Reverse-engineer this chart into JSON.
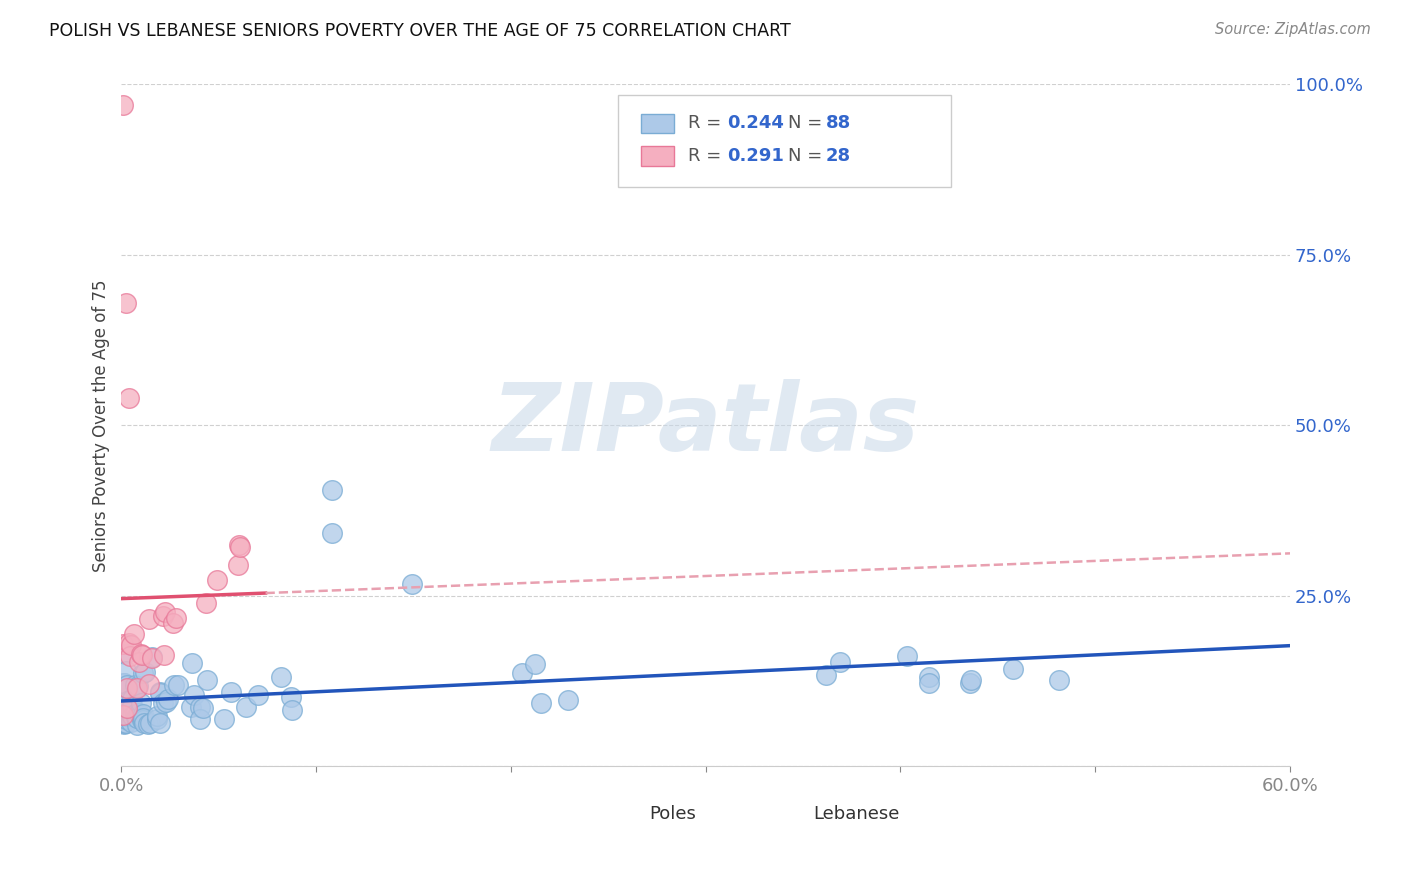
{
  "title": "POLISH VS LEBANESE SENIORS POVERTY OVER THE AGE OF 75 CORRELATION CHART",
  "source": "Source: ZipAtlas.com",
  "ylabel": "Seniors Poverty Over the Age of 75",
  "xlim": [
    0.0,
    0.6
  ],
  "ylim": [
    0.0,
    1.0
  ],
  "bg_color": "#ffffff",
  "grid_color": "#d0d0d0",
  "poles_color": "#adc9e8",
  "lebanese_color": "#f5afc0",
  "poles_edge_color": "#7aacd4",
  "lebanese_edge_color": "#e87898",
  "poles_line_color": "#2255bb",
  "lebanese_line_color": "#e05070",
  "lebanese_dashed_color": "#e8a0b0",
  "R_poles": "0.244",
  "N_poles": "88",
  "R_lebanese": "0.291",
  "N_lebanese": "28",
  "watermark_text": "ZIPatlas",
  "poles_seed": 42,
  "leb_seed": 99
}
